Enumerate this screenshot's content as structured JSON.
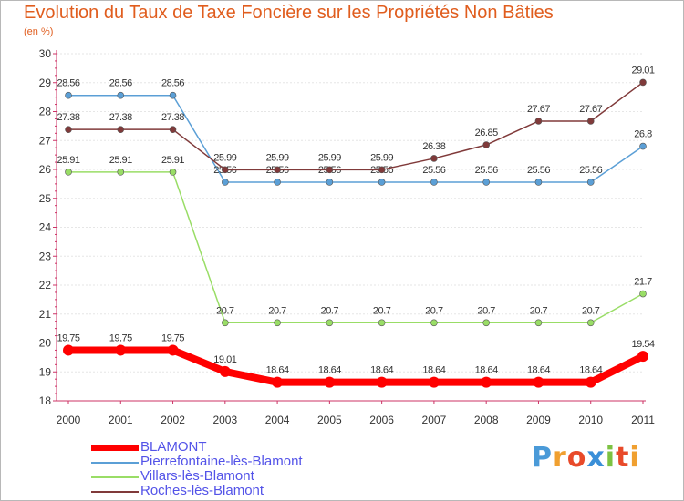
{
  "header": {
    "title": "Evolution du Taux de Taxe Foncière sur les Propriétés Non Bâties",
    "subtitle": "(en %)"
  },
  "brand": {
    "letters": [
      "P",
      "r",
      "o",
      "x",
      "i",
      "t",
      "i"
    ],
    "colors": [
      "#4a9ad8",
      "#f0a030",
      "#e84a2a",
      "#3a8fd8",
      "#7cc242",
      "#e84a2a",
      "#f0a030"
    ]
  },
  "chart_data": {
    "type": "line",
    "title": "Evolution du Taux de Taxe Foncière sur les Propriétés Non Bâties",
    "ylabel": "(en %)",
    "xlabel": "",
    "ylim": [
      18,
      30
    ],
    "yticks": [
      18,
      19,
      20,
      21,
      22,
      23,
      24,
      25,
      26,
      27,
      28,
      29,
      30
    ],
    "grid": true,
    "legend_position": "bottom-left",
    "categories": [
      "2000",
      "2001",
      "2002",
      "2003",
      "2004",
      "2005",
      "2006",
      "2007",
      "2008",
      "2009",
      "2010",
      "2011"
    ],
    "series": [
      {
        "name": "BLAMONT",
        "color": "#ff0000",
        "emphasis": true,
        "values": [
          19.75,
          19.75,
          19.75,
          19.01,
          18.64,
          18.64,
          18.64,
          18.64,
          18.64,
          18.64,
          18.64,
          19.54
        ],
        "labels": [
          "19.75",
          "19.75",
          "19.75",
          "19.01",
          "18.64",
          "18.64",
          "18.64",
          "18.64",
          "18.64",
          "18.64",
          "18.64",
          "19.54"
        ]
      },
      {
        "name": "Pierrefontaine-lès-Blamont",
        "color": "#5b9fd6",
        "emphasis": false,
        "values": [
          28.56,
          28.56,
          28.56,
          25.56,
          25.56,
          25.56,
          25.56,
          25.56,
          25.56,
          25.56,
          25.56,
          26.8
        ],
        "labels": [
          "28.56",
          "28.56",
          "28.56",
          "25.56",
          "25.56",
          "25.56",
          "25.56",
          "25.56",
          "25.56",
          "25.56",
          "25.56",
          "26.8"
        ]
      },
      {
        "name": "Villars-lès-Blamont",
        "color": "#99dd66",
        "emphasis": false,
        "values": [
          25.91,
          25.91,
          25.91,
          20.7,
          20.7,
          20.7,
          20.7,
          20.7,
          20.7,
          20.7,
          20.7,
          21.7
        ],
        "labels": [
          "25.91",
          "25.91",
          "25.91",
          "20.7",
          "20.7",
          "20.7",
          "20.7",
          "20.7",
          "20.7",
          "20.7",
          "20.7",
          "21.7"
        ]
      },
      {
        "name": "Roches-lès-Blamont",
        "color": "#803a3a",
        "emphasis": false,
        "values": [
          27.38,
          27.38,
          27.38,
          25.99,
          25.99,
          25.99,
          25.99,
          26.38,
          26.85,
          27.67,
          27.67,
          29.01
        ],
        "labels": [
          "27.38",
          "27.38",
          "27.38",
          "25.99",
          "25.99",
          "25.99",
          "25.99",
          "26.38",
          "26.85",
          "27.67",
          "27.67",
          "29.01"
        ]
      }
    ]
  }
}
